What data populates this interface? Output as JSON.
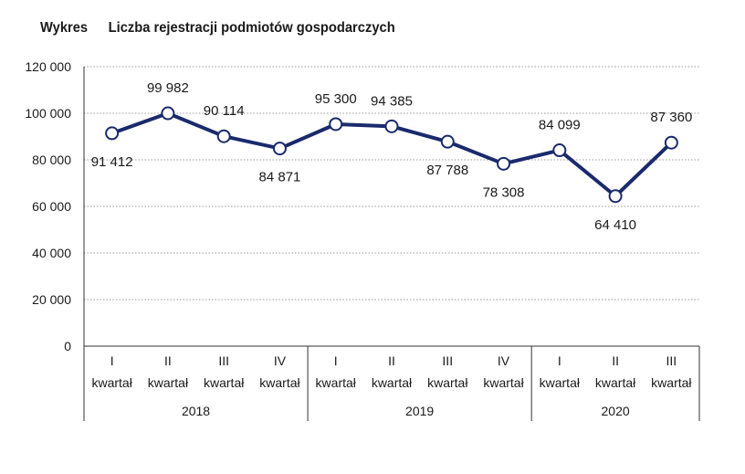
{
  "header": {
    "label": "Wykres",
    "title": "Liczba rejestracji podmiotów gospodarczych"
  },
  "chart_data": {
    "type": "line",
    "ylim": [
      0,
      120000
    ],
    "yticks": [
      0,
      20000,
      40000,
      60000,
      80000,
      100000,
      120000
    ],
    "ytick_labels": [
      "0",
      "20 000",
      "40 000",
      "60 000",
      "80 000",
      "100 000",
      "120 000"
    ],
    "grid": true,
    "line_color": "#1a2a6c",
    "categories": [
      {
        "quarter": "I",
        "unit": "kwartał",
        "year": "2018"
      },
      {
        "quarter": "II",
        "unit": "kwartał",
        "year": "2018"
      },
      {
        "quarter": "III",
        "unit": "kwartał",
        "year": "2018"
      },
      {
        "quarter": "IV",
        "unit": "kwartał",
        "year": "2018"
      },
      {
        "quarter": "I",
        "unit": "kwartał",
        "year": "2019"
      },
      {
        "quarter": "II",
        "unit": "kwartał",
        "year": "2019"
      },
      {
        "quarter": "III",
        "unit": "kwartał",
        "year": "2019"
      },
      {
        "quarter": "IV",
        "unit": "kwartał",
        "year": "2019"
      },
      {
        "quarter": "I",
        "unit": "kwartał",
        "year": "2020"
      },
      {
        "quarter": "II",
        "unit": "kwartał",
        "year": "2020"
      },
      {
        "quarter": "III",
        "unit": "kwartał",
        "year": "2020"
      }
    ],
    "years": [
      "2018",
      "2019",
      "2020"
    ],
    "values": [
      91412,
      99982,
      90114,
      84871,
      95300,
      94385,
      87788,
      78308,
      84099,
      64410,
      87360
    ],
    "data_labels": [
      "91 412",
      "99 982",
      "90 114",
      "84 871",
      "95 300",
      "94 385",
      "87 788",
      "78 308",
      "84 099",
      "64 410",
      "87 360"
    ],
    "label_positions": [
      "below",
      "above",
      "above",
      "below",
      "above",
      "above",
      "below",
      "below",
      "above",
      "below",
      "above"
    ]
  }
}
